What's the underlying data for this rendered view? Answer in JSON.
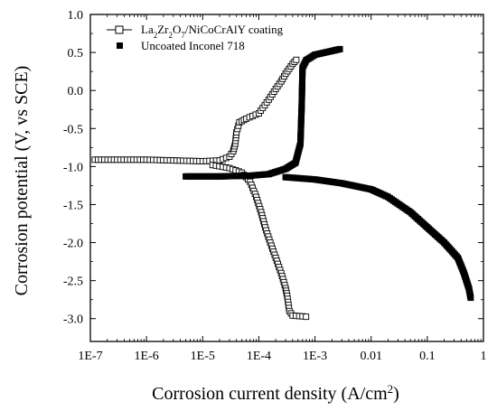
{
  "chart_data": {
    "type": "line",
    "xlabel": "Corrosion current density (A/cm",
    "xlabel_superscript": "2",
    "xlabel_suffix": ")",
    "ylabel": "Corrosion potential (V, vs SCE)",
    "x_scale": "log",
    "xlim": [
      1e-07,
      1
    ],
    "ylim": [
      -3.3,
      1.0
    ],
    "x_ticks": [
      1e-07,
      1e-06,
      1e-05,
      0.0001,
      0.001,
      0.01,
      0.1,
      1
    ],
    "x_tick_labels": [
      "1E-7",
      "1E-6",
      "1E-5",
      "1E-4",
      "1E-3",
      "0.01",
      "0.1",
      "1"
    ],
    "y_ticks": [
      1.0,
      0.5,
      0.0,
      -0.5,
      -1.0,
      -1.5,
      -2.0,
      -2.5,
      -3.0
    ],
    "y_tick_labels": [
      "1.0",
      "0.5",
      "0.0",
      "-0.5",
      "-1.0",
      "-1.5",
      "-2.0",
      "-2.5",
      "-3.0"
    ],
    "grid": false,
    "legend_position": "top-right",
    "series": [
      {
        "name_parts": [
          "La",
          "2",
          "Zr",
          "2",
          "O",
          "7",
          "/NiCoCrAlY coating"
        ],
        "marker": "open-square",
        "color": "#000000",
        "points": [
          [
            1.2e-07,
            -0.91
          ],
          [
            3e-07,
            -0.91
          ],
          [
            1e-06,
            -0.91
          ],
          [
            3e-06,
            -0.92
          ],
          [
            1e-05,
            -0.93
          ],
          [
            2e-05,
            -0.92
          ],
          [
            3e-05,
            -0.87
          ],
          [
            3.5e-05,
            -0.8
          ],
          [
            3.8e-05,
            -0.7
          ],
          [
            4e-05,
            -0.55
          ],
          [
            4.5e-05,
            -0.42
          ],
          [
            6e-05,
            -0.37
          ],
          [
            0.0001,
            -0.3
          ],
          [
            0.00015,
            -0.12
          ],
          [
            0.0002,
            0.02
          ],
          [
            0.00025,
            0.12
          ],
          [
            0.0003,
            0.22
          ],
          [
            0.0004,
            0.35
          ],
          [
            0.0005,
            0.43
          ],
          [
            1.5e-05,
            -0.98
          ],
          [
            3e-05,
            -1.02
          ],
          [
            5e-05,
            -1.08
          ],
          [
            7e-05,
            -1.2
          ],
          [
            9e-05,
            -1.4
          ],
          [
            0.00011,
            -1.6
          ],
          [
            0.00013,
            -1.8
          ],
          [
            0.00016,
            -2.0
          ],
          [
            0.0002,
            -2.2
          ],
          [
            0.00025,
            -2.4
          ],
          [
            0.0003,
            -2.6
          ],
          [
            0.00032,
            -2.7
          ],
          [
            0.00035,
            -2.9
          ],
          [
            0.0004,
            -2.96
          ],
          [
            0.0006,
            -2.97
          ],
          [
            0.0008,
            -2.98
          ]
        ]
      },
      {
        "name": "Uncoated Inconel 718",
        "marker": "filled-square",
        "color": "#000000",
        "points": [
          [
            5e-06,
            -1.13
          ],
          [
            2e-05,
            -1.13
          ],
          [
            7e-05,
            -1.12
          ],
          [
            0.00015,
            -1.1
          ],
          [
            0.0003,
            -1.03
          ],
          [
            0.00045,
            -0.95
          ],
          [
            0.00055,
            -0.7
          ],
          [
            0.00058,
            -0.2
          ],
          [
            0.0006,
            0.3
          ],
          [
            0.0007,
            0.4
          ],
          [
            0.001,
            0.47
          ],
          [
            0.002,
            0.52
          ],
          [
            0.003,
            0.55
          ],
          [
            0.0003,
            -1.14
          ],
          [
            0.001,
            -1.17
          ],
          [
            0.003,
            -1.22
          ],
          [
            0.01,
            -1.3
          ],
          [
            0.02,
            -1.4
          ],
          [
            0.05,
            -1.6
          ],
          [
            0.1,
            -1.8
          ],
          [
            0.2,
            -2.0
          ],
          [
            0.35,
            -2.2
          ],
          [
            0.45,
            -2.4
          ],
          [
            0.55,
            -2.6
          ],
          [
            0.6,
            -2.75
          ]
        ]
      }
    ]
  }
}
